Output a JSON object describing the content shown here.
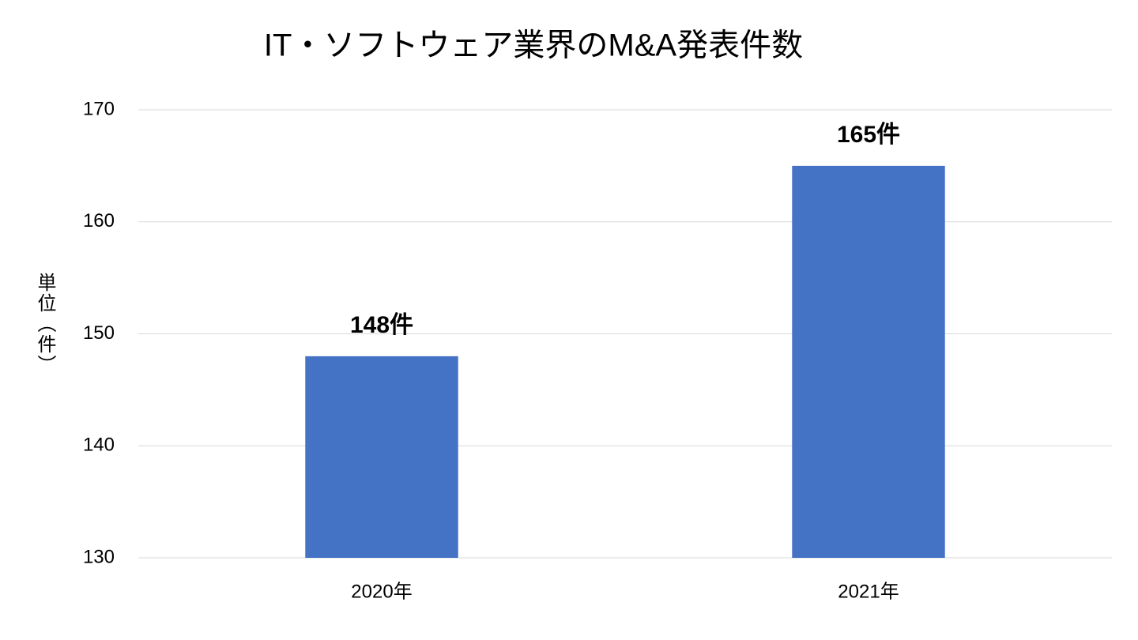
{
  "chart_data": {
    "type": "bar",
    "title": "IT・ソフトウェア業界のM&A発表件数",
    "y_label": "単位（件）",
    "categories": [
      "2020年",
      "2021年"
    ],
    "values": [
      148,
      165
    ],
    "value_labels": [
      "148件",
      "165件"
    ],
    "color": "#4472c4",
    "ylim": [
      130,
      170
    ],
    "yticks": [
      130,
      140,
      150,
      160,
      170
    ],
    "grid": true
  }
}
